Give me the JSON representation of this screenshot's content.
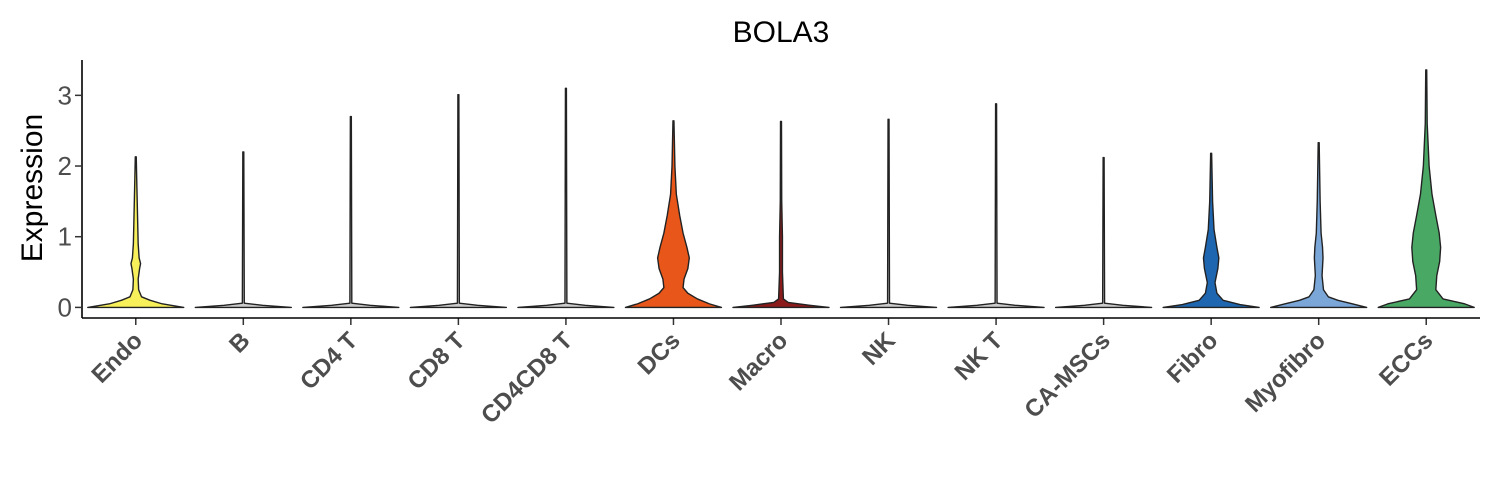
{
  "chart_data": {
    "type": "violin",
    "title": "BOLA3",
    "ylabel": "Expression",
    "xlabel": "",
    "ylim": [
      -0.15,
      3.5
    ],
    "yticks": [
      0,
      1,
      2,
      3
    ],
    "categories": [
      "Endo",
      "B",
      "CD4 T",
      "CD8 T",
      "CD4CD8 T",
      "DCs",
      "Macro",
      "NK",
      "NK T",
      "CA-MSCs",
      "Fibro",
      "Myofibro",
      "ECCs"
    ],
    "colors": [
      "#f7f05a",
      "#cccccc",
      "#cccccc",
      "#cccccc",
      "#cccccc",
      "#e8561a",
      "#8b1a1a",
      "#cccccc",
      "#cccccc",
      "#cccccc",
      "#1f66b0",
      "#7aa6d8",
      "#4aa865"
    ],
    "max_values": [
      2.13,
      2.2,
      2.7,
      3.01,
      3.1,
      2.64,
      2.63,
      2.66,
      2.88,
      2.12,
      2.18,
      2.33,
      3.36
    ],
    "density": [
      [
        [
          0,
          1
        ],
        [
          0.05,
          0.55
        ],
        [
          0.1,
          0.3
        ],
        [
          0.15,
          0.12
        ],
        [
          0.25,
          0.06
        ],
        [
          0.4,
          0.05
        ],
        [
          0.55,
          0.08
        ],
        [
          0.62,
          0.1
        ],
        [
          0.7,
          0.07
        ],
        [
          0.9,
          0.05
        ],
        [
          1.2,
          0.04
        ],
        [
          1.5,
          0.03
        ],
        [
          1.8,
          0.02
        ],
        [
          2.13,
          0.01
        ]
      ],
      [
        [
          0,
          1
        ],
        [
          0.03,
          0.4
        ],
        [
          0.06,
          0.02
        ],
        [
          2.2,
          0.01
        ]
      ],
      [
        [
          0,
          1
        ],
        [
          0.03,
          0.4
        ],
        [
          0.06,
          0.02
        ],
        [
          2.7,
          0.01
        ]
      ],
      [
        [
          0,
          1
        ],
        [
          0.03,
          0.4
        ],
        [
          0.06,
          0.02
        ],
        [
          3.01,
          0.01
        ]
      ],
      [
        [
          0,
          1
        ],
        [
          0.03,
          0.4
        ],
        [
          0.06,
          0.02
        ],
        [
          3.1,
          0.01
        ]
      ],
      [
        [
          0,
          1
        ],
        [
          0.05,
          0.75
        ],
        [
          0.12,
          0.5
        ],
        [
          0.2,
          0.3
        ],
        [
          0.28,
          0.2
        ],
        [
          0.4,
          0.22
        ],
        [
          0.55,
          0.3
        ],
        [
          0.7,
          0.33
        ],
        [
          0.85,
          0.28
        ],
        [
          1.05,
          0.2
        ],
        [
          1.3,
          0.13
        ],
        [
          1.6,
          0.06
        ],
        [
          2.0,
          0.03
        ],
        [
          2.64,
          0.01
        ]
      ],
      [
        [
          0,
          1
        ],
        [
          0.03,
          0.6
        ],
        [
          0.07,
          0.15
        ],
        [
          0.12,
          0.05
        ],
        [
          0.5,
          0.03
        ],
        [
          1.0,
          0.03
        ],
        [
          1.5,
          0.015
        ],
        [
          2.63,
          0.01
        ]
      ],
      [
        [
          0,
          1
        ],
        [
          0.03,
          0.4
        ],
        [
          0.06,
          0.02
        ],
        [
          2.66,
          0.01
        ]
      ],
      [
        [
          0,
          1
        ],
        [
          0.03,
          0.4
        ],
        [
          0.06,
          0.02
        ],
        [
          2.88,
          0.01
        ]
      ],
      [
        [
          0,
          1
        ],
        [
          0.03,
          0.4
        ],
        [
          0.06,
          0.02
        ],
        [
          2.12,
          0.01
        ]
      ],
      [
        [
          0,
          1
        ],
        [
          0.04,
          0.6
        ],
        [
          0.1,
          0.25
        ],
        [
          0.2,
          0.12
        ],
        [
          0.35,
          0.08
        ],
        [
          0.55,
          0.14
        ],
        [
          0.7,
          0.16
        ],
        [
          0.85,
          0.12
        ],
        [
          1.1,
          0.06
        ],
        [
          1.5,
          0.03
        ],
        [
          2.18,
          0.01
        ]
      ],
      [
        [
          0,
          1
        ],
        [
          0.05,
          0.7
        ],
        [
          0.1,
          0.4
        ],
        [
          0.15,
          0.2
        ],
        [
          0.25,
          0.1
        ],
        [
          0.45,
          0.07
        ],
        [
          0.7,
          0.09
        ],
        [
          0.85,
          0.08
        ],
        [
          1.05,
          0.05
        ],
        [
          1.5,
          0.03
        ],
        [
          2.33,
          0.01
        ]
      ],
      [
        [
          0,
          1
        ],
        [
          0.05,
          0.8
        ],
        [
          0.12,
          0.35
        ],
        [
          0.25,
          0.2
        ],
        [
          0.45,
          0.22
        ],
        [
          0.65,
          0.28
        ],
        [
          0.85,
          0.3
        ],
        [
          1.05,
          0.27
        ],
        [
          1.3,
          0.2
        ],
        [
          1.6,
          0.12
        ],
        [
          2.0,
          0.06
        ],
        [
          2.6,
          0.02
        ],
        [
          3.36,
          0.01
        ]
      ]
    ]
  }
}
